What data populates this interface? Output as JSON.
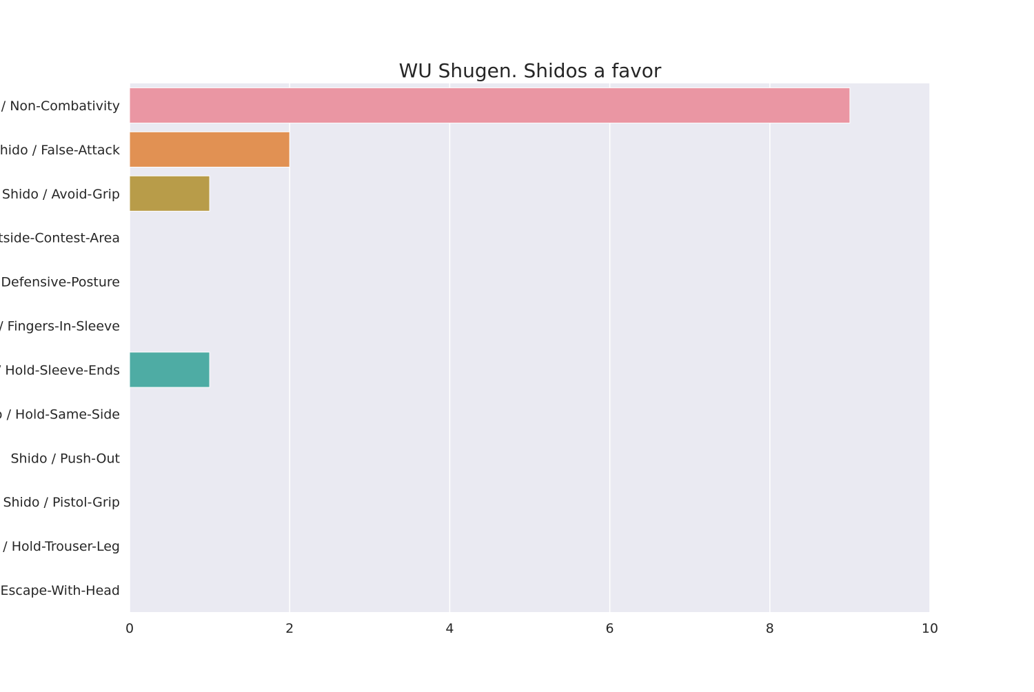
{
  "chart_data": {
    "type": "bar",
    "orientation": "horizontal",
    "title": "WU Shugen. Shidos a favor",
    "xlabel": "",
    "ylabel": "",
    "xlim": [
      0,
      10
    ],
    "x_ticks": [
      "0",
      "2",
      "4",
      "6",
      "8",
      "10"
    ],
    "x_tick_values": [
      0,
      2,
      4,
      6,
      8,
      10
    ],
    "grid": true,
    "categories": [
      "Shido / Non-Combativity",
      "Shido / False-Attack",
      "Shido / Avoid-Grip",
      "Shido / Outside-Contest-Area",
      "Shido / Defensive-Posture",
      "Shido / Fingers-In-Sleeve",
      "Shido / Hold-Sleeve-Ends",
      "Shido / Hold-Same-Side",
      "Shido / Push-Out",
      "Shido / Pistol-Grip",
      "Shido / Hold-Trouser-Leg",
      "Shido / Escape-With-Head"
    ],
    "values": [
      9,
      2,
      1,
      0,
      0,
      0,
      1,
      0,
      0,
      0,
      0,
      0
    ],
    "colors": [
      "#ea96a3",
      "#e19153",
      "#b89c49",
      "#94a83c",
      "#5aac47",
      "#4dae90",
      "#4eaca4",
      "#50aab3",
      "#5ba3c9",
      "#a99ce6",
      "#d88fe1",
      "#e98fc2"
    ],
    "background_color": "#eaeaf2",
    "grid_color": "#ffffff"
  }
}
